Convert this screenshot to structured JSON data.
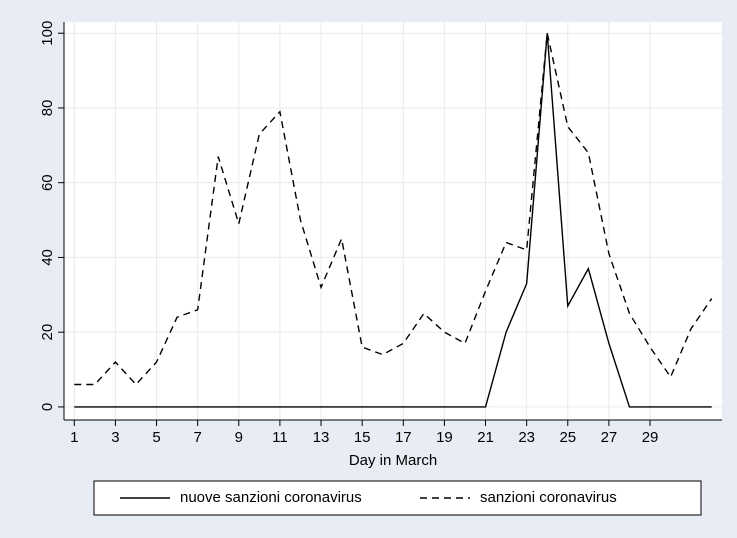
{
  "chart_data": {
    "type": "line",
    "x_label": "Day in March",
    "x": [
      1,
      2,
      3,
      4,
      5,
      6,
      7,
      8,
      9,
      10,
      11,
      12,
      13,
      14,
      15,
      16,
      17,
      18,
      19,
      20,
      21,
      22,
      23,
      24,
      25,
      26,
      27,
      28,
      29,
      30,
      31,
      32
    ],
    "series": [
      {
        "name": "nuove sanzioni coronavirus",
        "color": "#000000",
        "style": "solid",
        "values": [
          0,
          0,
          0,
          0,
          0,
          0,
          0,
          0,
          0,
          0,
          0,
          0,
          0,
          0,
          0,
          0,
          0,
          0,
          0,
          0,
          0,
          20,
          33,
          100,
          27,
          37,
          17,
          0,
          0,
          0,
          0,
          0
        ]
      },
      {
        "name": "sanzioni coronavirus",
        "color": "#000000",
        "style": "dashed",
        "values": [
          6,
          6,
          12,
          6,
          12,
          24,
          26,
          67,
          49,
          73,
          79,
          50,
          32,
          45,
          16,
          14,
          17,
          25,
          20,
          17,
          31,
          44,
          42,
          100,
          75,
          68,
          41,
          25,
          16,
          8,
          21,
          29
        ]
      }
    ],
    "xlim": [
      0.5,
      32.5
    ],
    "xticks": [
      1,
      3,
      5,
      7,
      9,
      11,
      13,
      15,
      17,
      19,
      21,
      23,
      25,
      27,
      29
    ],
    "ylim": [
      -3.5,
      103
    ],
    "yticks": [
      0,
      20,
      40,
      60,
      80,
      100
    ],
    "grid": true,
    "legend": "bottom"
  }
}
